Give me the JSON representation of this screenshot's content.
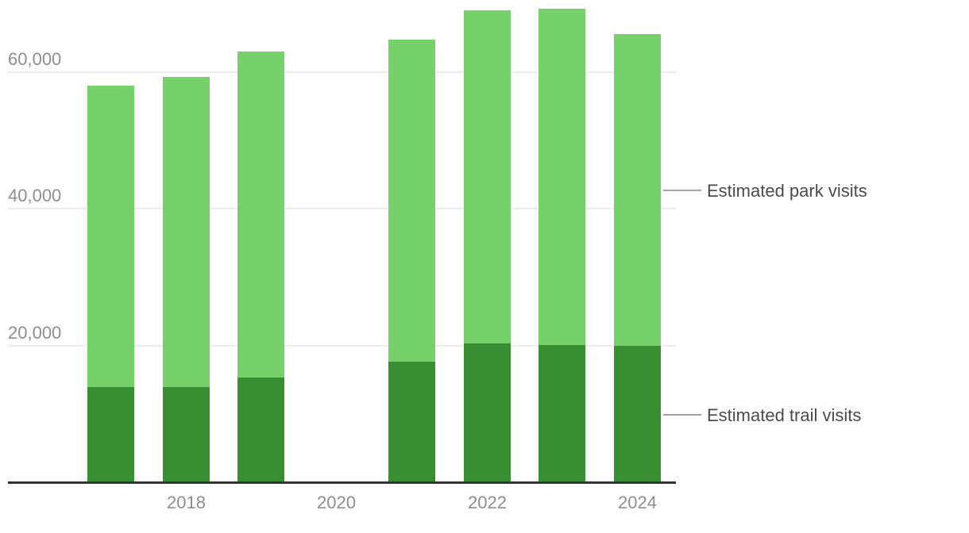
{
  "chart_data": {
    "type": "bar",
    "stacked": true,
    "title": "",
    "xlabel": "",
    "ylabel": "",
    "categories": [
      2017,
      2018,
      2019,
      2020,
      2021,
      2022,
      2023,
      2024
    ],
    "series": [
      {
        "name": "Estimated trail visits",
        "color": "#388e32",
        "values": [
          13900,
          13900,
          15300,
          null,
          17600,
          20300,
          20100,
          19900
        ]
      },
      {
        "name": "Estimated park visits",
        "color": "#76d16b",
        "values": [
          44100,
          45300,
          47700,
          null,
          47100,
          48700,
          49200,
          45600
        ]
      }
    ],
    "totals": [
      58000,
      59200,
      63000,
      null,
      64700,
      69000,
      69300,
      65500
    ],
    "ylim": [
      0,
      70000
    ],
    "yticks": [
      20000,
      40000,
      60000
    ],
    "ytick_labels": [
      "20,000",
      "40,000",
      "60,000"
    ],
    "xticks": [
      2018,
      2020,
      2022,
      2024
    ],
    "xtick_labels": [
      "2018",
      "2020",
      "2022",
      "2024"
    ],
    "grid": true,
    "legend_position": "right"
  },
  "legend": {
    "items": [
      {
        "label": "Estimated park visits",
        "series": "park"
      },
      {
        "label": "Estimated trail visits",
        "series": "trail"
      }
    ]
  },
  "colors": {
    "park_green": "#76d16b",
    "trail_green": "#388e32",
    "gridline": "#ececec",
    "axis_line": "#333333",
    "tick_text": "#8e8e8e",
    "legend_text": "#4b4b4b",
    "legend_connector": "#a3a3a3",
    "background": "#ffffff"
  }
}
